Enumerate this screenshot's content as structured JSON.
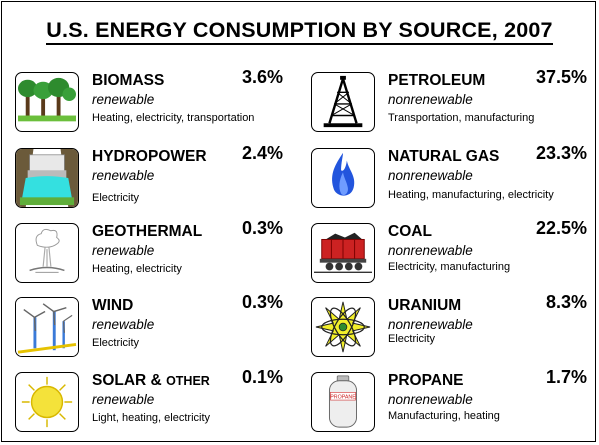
{
  "title": "U.S. ENERGY CONSUMPTION BY SOURCE, 2007",
  "sources": {
    "biomass": {
      "name": "BIOMASS",
      "type": "renewable",
      "uses": "Heating, electricity, transportation",
      "percent": "3.6%"
    },
    "hydropower": {
      "name": "HYDROPOWER",
      "type": "renewable",
      "uses": "Electricity",
      "percent": "2.4%"
    },
    "geothermal": {
      "name": "GEOTHERMAL",
      "type": "renewable",
      "uses": "Heating, electricity",
      "percent": "0.3%"
    },
    "wind": {
      "name": "WIND",
      "type": "renewable",
      "uses": "Electricity",
      "percent": "0.3%"
    },
    "solar": {
      "name": "SOLAR & ",
      "name_suffix": "OTHER",
      "type": "renewable",
      "uses": "Light, heating, electricity",
      "percent": "0.1%"
    },
    "petroleum": {
      "name": "PETROLEUM",
      "type": "nonrenewable",
      "uses": "Transportation, manufacturing",
      "percent": "37.5%"
    },
    "natural_gas": {
      "name": "NATURAL GAS",
      "type": "nonrenewable",
      "uses": "Heating, manufacturing, electricity",
      "percent": "23.3%"
    },
    "coal": {
      "name": "COAL",
      "type": "nonrenewable",
      "uses": "Electricity, manufacturing",
      "percent": "22.5%"
    },
    "uranium": {
      "name": "URANIUM",
      "type": "nonrenewable",
      "uses": "Electricity",
      "percent": "8.3%"
    },
    "propane": {
      "name": "PROPANE",
      "type": "nonrenewable",
      "uses": "Manufacturing, heating",
      "percent": "1.7%",
      "tank_label": "PROPANE"
    }
  },
  "icons": {
    "biomass": "trees-icon",
    "hydropower": "dam-icon",
    "geothermal": "geyser-icon",
    "wind": "wind-turbine-icon",
    "solar": "sun-icon",
    "petroleum": "oil-derrick-icon",
    "natural_gas": "gas-flame-icon",
    "coal": "coal-car-icon",
    "uranium": "atom-icon",
    "propane": "propane-tank-icon"
  },
  "colors": {
    "tree_green": "#2e8b2e",
    "water_cyan": "#34e0e0",
    "flame_blue": "#2255dd",
    "coal_red": "#cc2222",
    "atom_yellow": "#f2ef2a",
    "sun_yellow": "#f4e23a",
    "wind_blue": "#3a7ad8"
  }
}
